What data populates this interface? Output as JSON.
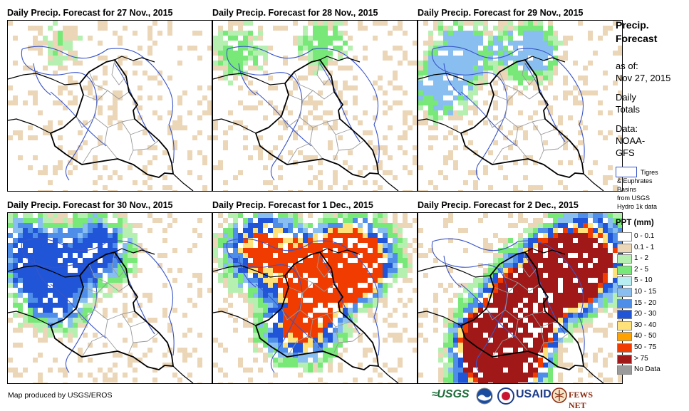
{
  "panels": [
    {
      "title": "Daily Precip. Forecast for 27 Nov., 2015",
      "intensity": 0
    },
    {
      "title": "Daily Precip. Forecast for 28 Nov., 2015",
      "intensity": 1
    },
    {
      "title": "Daily Precip. Forecast for 29 Nov., 2015",
      "intensity": 2
    },
    {
      "title": "Daily Precip. Forecast for 30 Nov., 2015",
      "intensity": 3
    },
    {
      "title": "Daily Precip. Forecast for 1 Dec., 2015",
      "intensity": 4
    },
    {
      "title": "Daily Precip. Forecast for 2 Dec., 2015",
      "intensity": 5
    }
  ],
  "legend": {
    "title_line1": "Precip.",
    "title_line2": "Forecast",
    "asof_label": "as of:",
    "asof_date": "Nov 27, 2015",
    "totals_line1": "Daily",
    "totals_line2": "Totals",
    "data_label": "Data:",
    "data_line1": "NOAA-",
    "data_line2": "GFS",
    "basin_line1": "Tigres",
    "basin_line2": "& Euphrates",
    "basin_line3": "Basins",
    "basin_line4": "from USGS",
    "basin_line5": "Hydro 1k data",
    "ppt_title": "PPT (mm)",
    "classes": [
      {
        "label": "0 - 0.1",
        "color": "#ffffff"
      },
      {
        "label": "0.1 - 1",
        "color": "#ebd6b8"
      },
      {
        "label": "1 - 2",
        "color": "#b6f0b0"
      },
      {
        "label": "2 - 5",
        "color": "#78e878"
      },
      {
        "label": "5 - 10",
        "color": "#b8eef2"
      },
      {
        "label": "10 - 15",
        "color": "#88bff0"
      },
      {
        "label": "15 - 20",
        "color": "#4f8ee8"
      },
      {
        "label": "20 - 30",
        "color": "#1f55d6"
      },
      {
        "label": "30 - 40",
        "color": "#ffe17a"
      },
      {
        "label": "40 - 50",
        "color": "#ffa200"
      },
      {
        "label": "50 - 75",
        "color": "#f03c00"
      },
      {
        "label": "> 75",
        "color": "#a01818"
      },
      {
        "label": "No Data",
        "color": "#9a9a9a"
      }
    ]
  },
  "credit": "Map produced by USGS/EROS",
  "logos": {
    "usgs": "USGS",
    "usaid": "USAID",
    "fewsnet": "FEWS NET"
  },
  "colors": {
    "country_border": "#000000",
    "province_border": "#9a9a9a",
    "basin_outline": "#3a55c8"
  }
}
